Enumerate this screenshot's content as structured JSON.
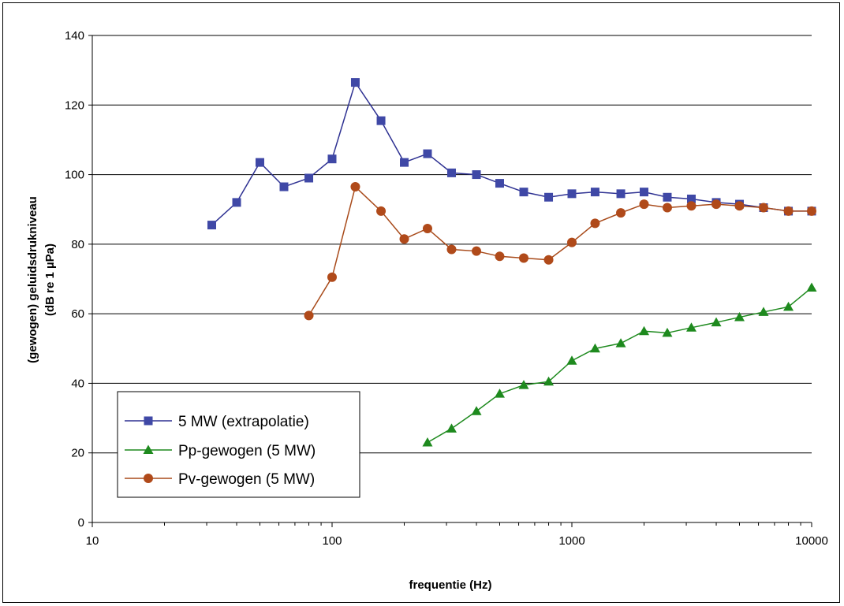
{
  "chart_data": {
    "type": "line",
    "xscale": "log",
    "xlim": [
      10,
      10000
    ],
    "ylim": [
      0,
      140
    ],
    "xlabel": "frequentie (Hz)",
    "ylabel_line1": "(gewogen) geluidsdrukniveau",
    "ylabel_line2": "(dB re 1 µPa)",
    "x_ticks": [
      10,
      100,
      1000,
      10000
    ],
    "x_tick_labels": [
      "10",
      "100",
      "1000",
      "10000"
    ],
    "y_ticks": [
      0,
      20,
      40,
      60,
      80,
      100,
      120,
      140
    ],
    "y_tick_labels": [
      "0",
      "20",
      "40",
      "60",
      "80",
      "100",
      "120",
      "140"
    ],
    "grid": "horizontal",
    "legend_position": "bottom-left",
    "series": [
      {
        "name": "5 MW (extrapolatie)",
        "marker": "square",
        "color": "#2E3192",
        "markerColor": "#3F48A6",
        "x": [
          31.5,
          40,
          50,
          63,
          80,
          100,
          125,
          160,
          200,
          250,
          315,
          400,
          500,
          630,
          800,
          1000,
          1250,
          1600,
          2000,
          2500,
          3150,
          4000,
          5000,
          6300,
          8000,
          10000
        ],
        "values": [
          85.5,
          92,
          103.5,
          96.5,
          99,
          104.5,
          126.5,
          115.5,
          103.5,
          106,
          100.5,
          100,
          97.5,
          95,
          93.5,
          94.5,
          95,
          94.5,
          95,
          93.5,
          93,
          92,
          91.5,
          90.5,
          89.5,
          89.5
        ]
      },
      {
        "name": "Pp-gewogen (5 MW)",
        "marker": "triangle",
        "color": "#1E8A1E",
        "markerColor": "#1E8A1E",
        "x": [
          250,
          315,
          400,
          500,
          630,
          800,
          1000,
          1250,
          1600,
          2000,
          2500,
          3150,
          4000,
          5000,
          6300,
          8000,
          10000
        ],
        "values": [
          23,
          27,
          32,
          37,
          39.5,
          40.5,
          46.5,
          50,
          51.5,
          55,
          54.5,
          56,
          57.5,
          59,
          60.5,
          62,
          67.5
        ]
      },
      {
        "name": "Pv-gewogen (5 MW)",
        "marker": "circle",
        "color": "#A84A1A",
        "markerColor": "#B04A1A",
        "x": [
          80,
          100,
          125,
          160,
          200,
          250,
          315,
          400,
          500,
          630,
          800,
          1000,
          1250,
          1600,
          2000,
          2500,
          3150,
          4000,
          5000,
          6300,
          8000,
          10000
        ],
        "values": [
          59.5,
          70.5,
          96.5,
          89.5,
          81.5,
          84.5,
          78.5,
          78,
          76.5,
          76,
          75.5,
          80.5,
          86,
          89,
          91.5,
          90.5,
          91,
          91.5,
          91,
          90.5,
          89.5,
          89.5
        ]
      }
    ]
  }
}
